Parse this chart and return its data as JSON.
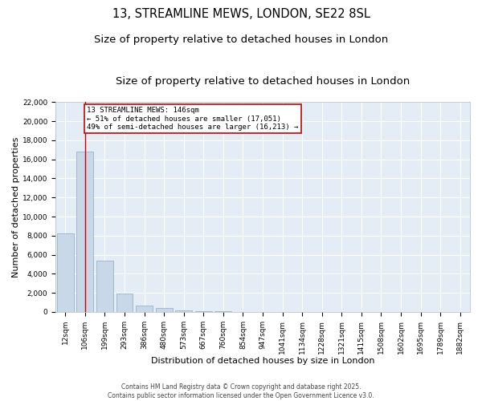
{
  "title_line1": "13, STREAMLINE MEWS, LONDON, SE22 8SL",
  "title_line2": "Size of property relative to detached houses in London",
  "xlabel": "Distribution of detached houses by size in London",
  "ylabel": "Number of detached properties",
  "bar_color": "#c8d8e8",
  "bar_edge_color": "#8aaabf",
  "background_color": "#e4edf5",
  "grid_color": "#ffffff",
  "vline_color": "#cc0000",
  "annotation_box_color": "#cc0000",
  "annotation_text": "13 STREAMLINE MEWS: 146sqm\n← 51% of detached houses are smaller (17,051)\n49% of semi-detached houses are larger (16,213) →",
  "vline_x_index": 1,
  "categories": [
    "12sqm",
    "106sqm",
    "199sqm",
    "293sqm",
    "386sqm",
    "480sqm",
    "573sqm",
    "667sqm",
    "760sqm",
    "854sqm",
    "947sqm",
    "1041sqm",
    "1134sqm",
    "1228sqm",
    "1321sqm",
    "1415sqm",
    "1508sqm",
    "1602sqm",
    "1695sqm",
    "1789sqm",
    "1882sqm"
  ],
  "values": [
    8200,
    16800,
    5400,
    1950,
    700,
    380,
    200,
    120,
    50,
    0,
    0,
    0,
    0,
    0,
    0,
    0,
    0,
    0,
    0,
    0,
    0
  ],
  "ylim": [
    0,
    22000
  ],
  "yticks": [
    0,
    2000,
    4000,
    6000,
    8000,
    10000,
    12000,
    14000,
    16000,
    18000,
    20000,
    22000
  ],
  "footer_line1": "Contains HM Land Registry data © Crown copyright and database right 2025.",
  "footer_line2": "Contains public sector information licensed under the Open Government Licence v3.0.",
  "title_fontsize": 10.5,
  "subtitle_fontsize": 9.5,
  "tick_fontsize": 6.5,
  "ylabel_fontsize": 8,
  "xlabel_fontsize": 8,
  "footer_fontsize": 5.5,
  "annotation_fontsize": 6.5
}
